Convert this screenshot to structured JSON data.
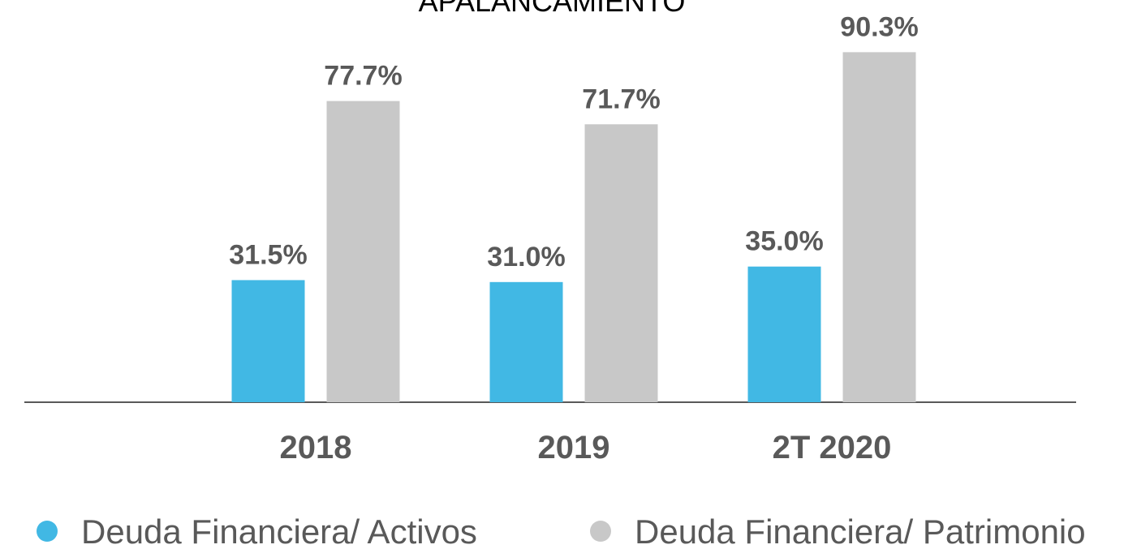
{
  "chart_data": {
    "type": "bar",
    "title": "APALANCAMIENTO",
    "categories": [
      "2018",
      "2019",
      "2T 2020"
    ],
    "series": [
      {
        "name": "Deuda Financiera/ Activos",
        "color": "#41b8e4",
        "values": [
          31.5,
          31.0,
          35.0
        ],
        "value_labels": [
          "31.5%",
          "31.0%",
          "35.0%"
        ]
      },
      {
        "name": "Deuda Financiera/ Patrimonio",
        "color": "#c8c8c8",
        "values": [
          77.7,
          71.7,
          90.3
        ],
        "value_labels": [
          "77.7%",
          "71.7%",
          "90.3%"
        ]
      }
    ],
    "ylim": [
      0,
      100
    ]
  }
}
